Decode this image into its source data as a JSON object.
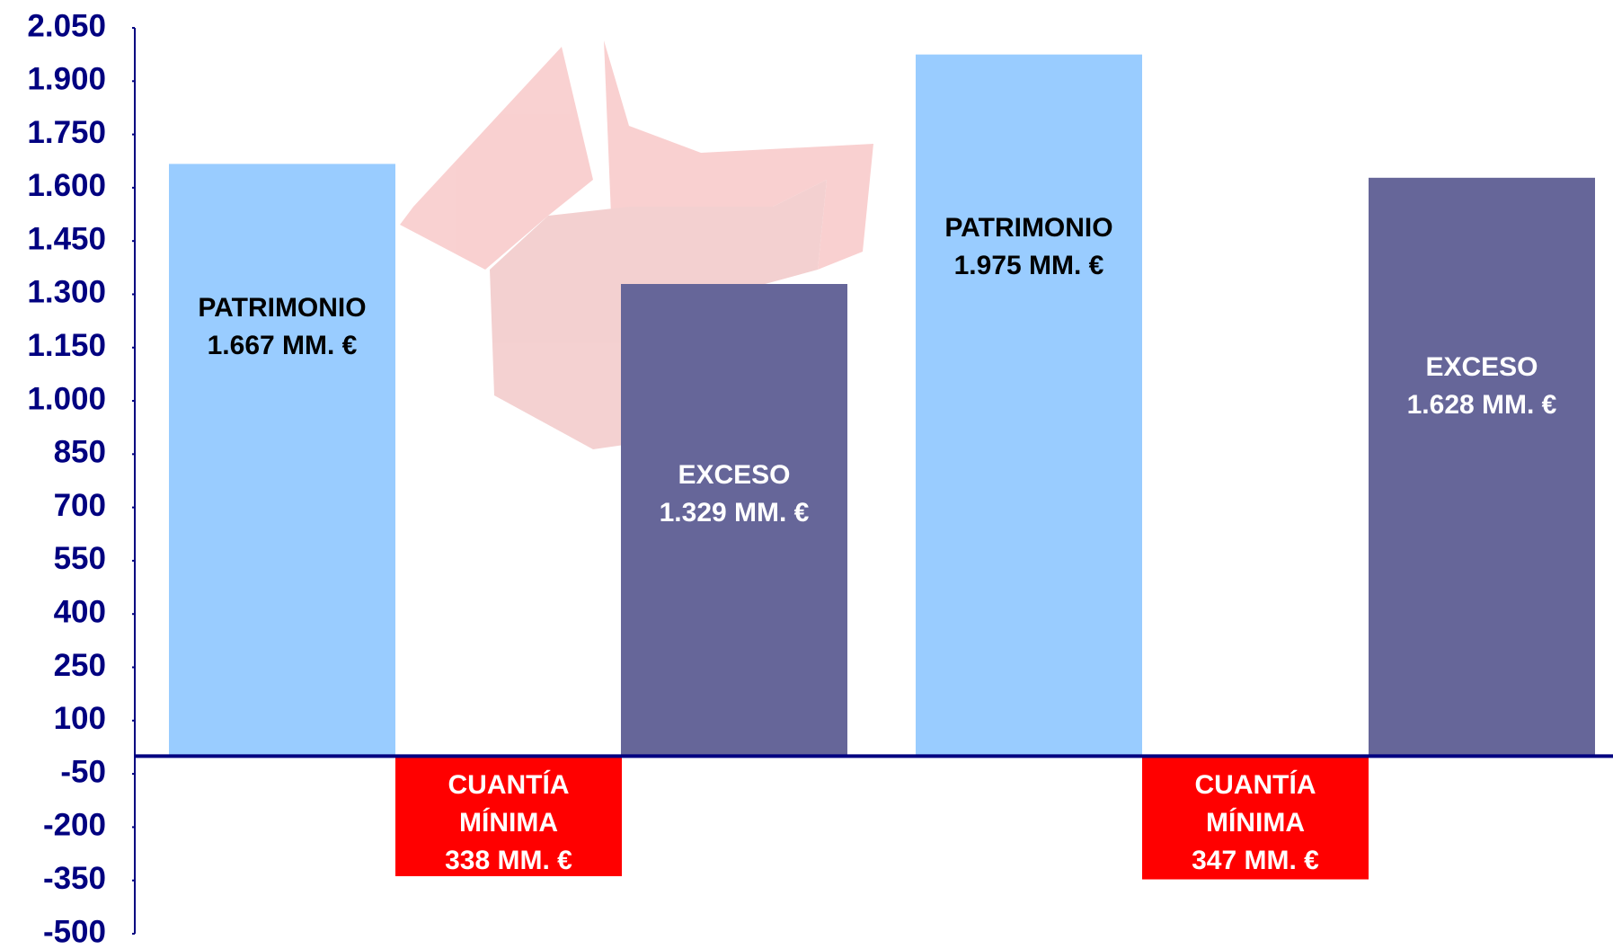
{
  "chart_data": {
    "type": "bar",
    "categories": [
      "PATRIMONIO",
      "CUANTÍA MÍNIMA",
      "EXCESO",
      "PATRIMONIO",
      "CUANTÍA MÍNIMA",
      "EXCESO"
    ],
    "values": [
      1667,
      -338,
      1329,
      1975,
      -347,
      1628
    ],
    "value_labels": [
      "1.667 MM. €",
      "338 MM. €",
      "1.329 MM. €",
      "1.975 MM. €",
      "347 MM. €",
      "1.628 MM. €"
    ],
    "colors": [
      "#99ccff",
      "#ff0000",
      "#666699",
      "#99ccff",
      "#ff0000",
      "#666699"
    ],
    "ylim": [
      -500,
      2050
    ],
    "yticks": [
      {
        "value": 2050,
        "label": "2.050"
      },
      {
        "value": 1900,
        "label": "1.900"
      },
      {
        "value": 1750,
        "label": "1.750"
      },
      {
        "value": 1600,
        "label": "1.600"
      },
      {
        "value": 1450,
        "label": "1.450"
      },
      {
        "value": 1300,
        "label": "1.300"
      },
      {
        "value": 1150,
        "label": "1.150"
      },
      {
        "value": 1000,
        "label": "1.000"
      },
      850,
      700,
      550,
      400,
      250,
      100,
      -50,
      -200,
      -350,
      -500
    ],
    "grid": false
  }
}
